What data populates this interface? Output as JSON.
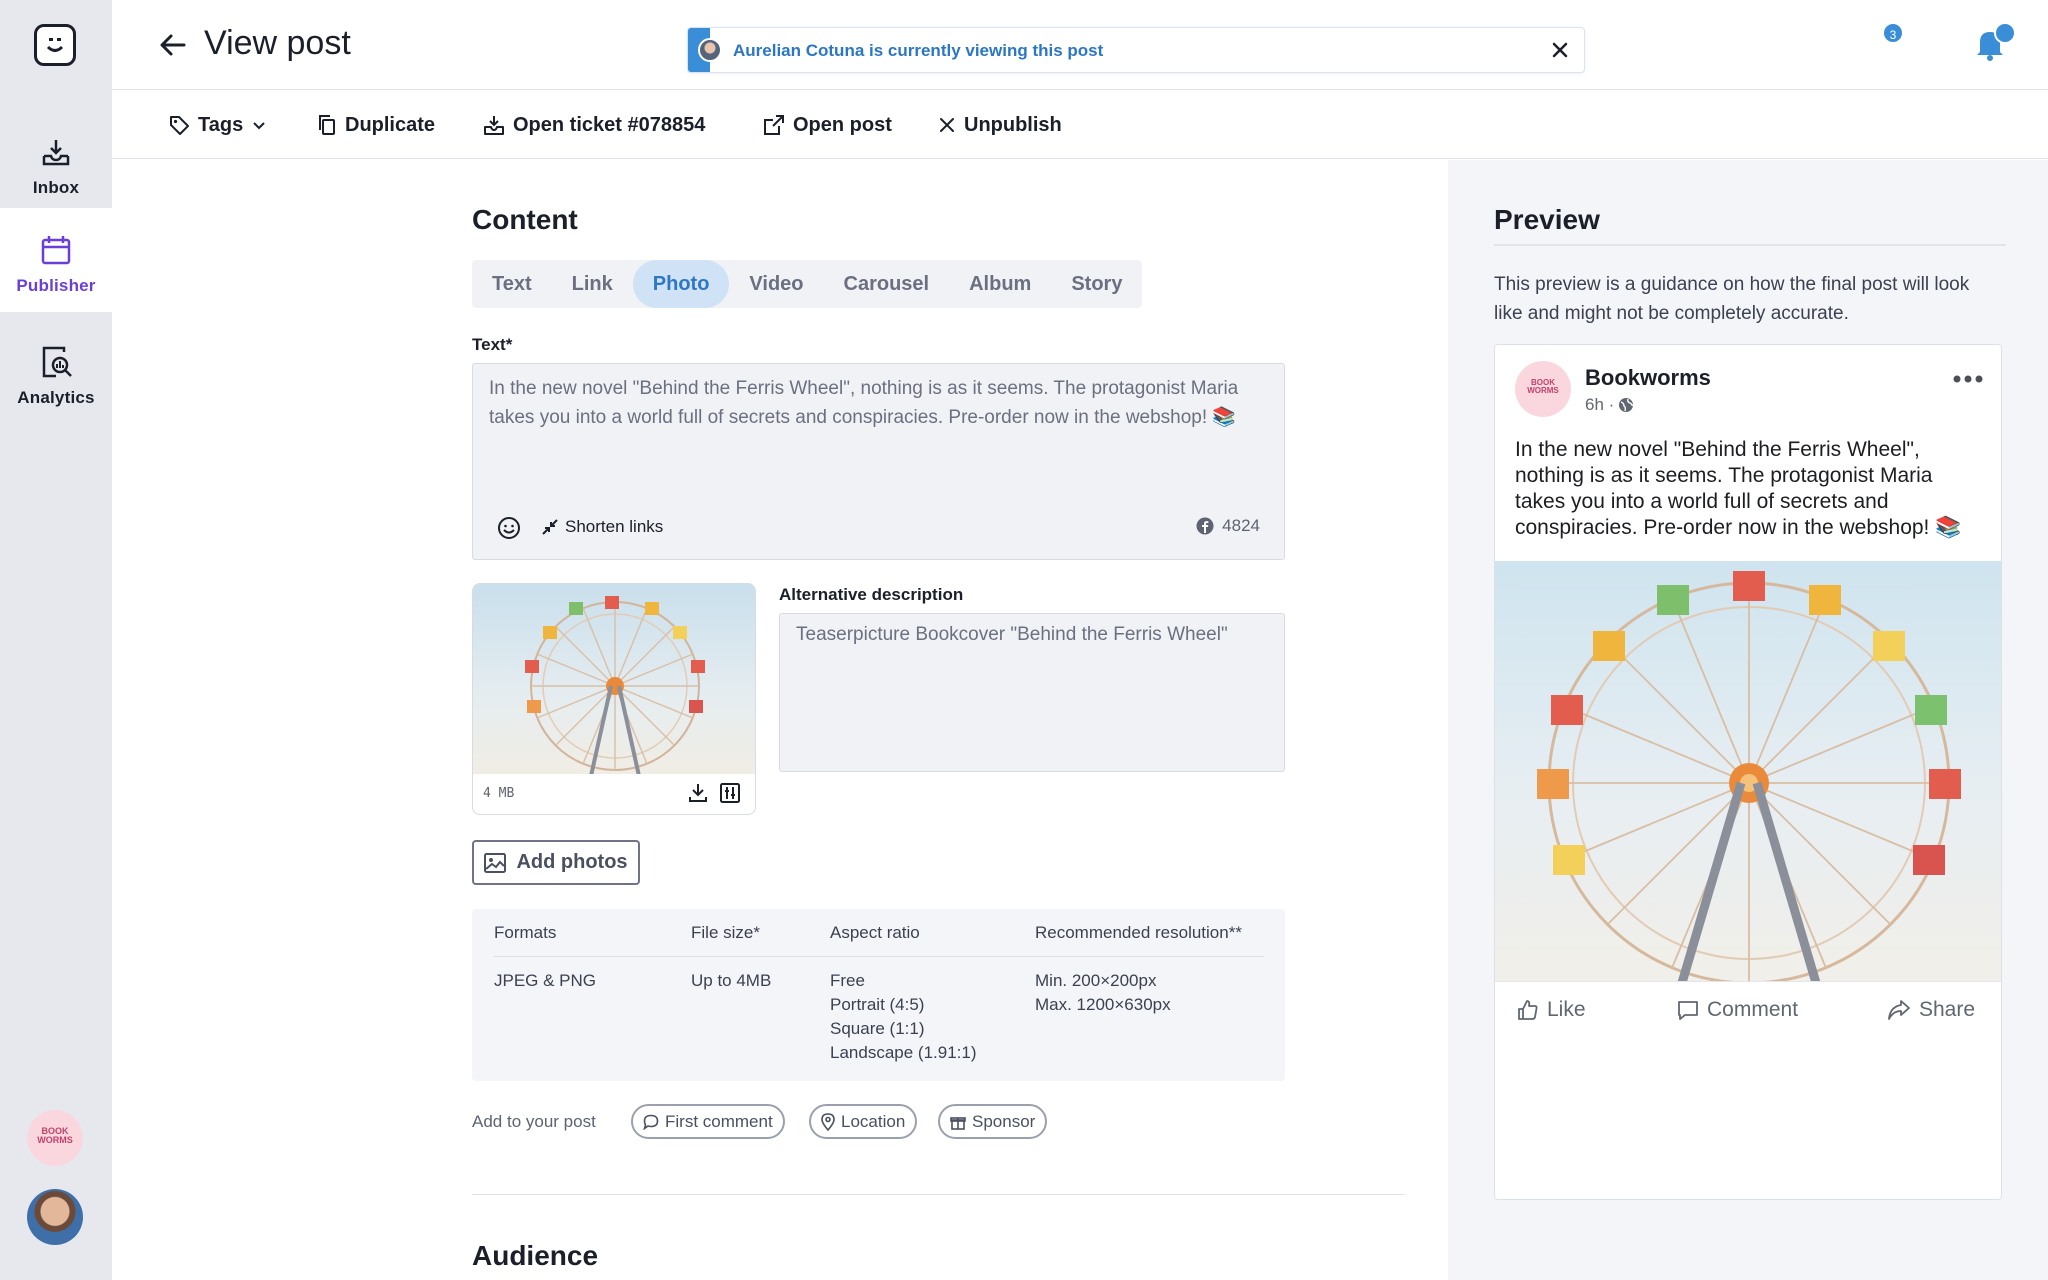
{
  "nav": {
    "items": [
      {
        "label": "Inbox",
        "icon": "inbox-icon"
      },
      {
        "label": "Publisher",
        "icon": "calendar-icon",
        "active": true
      },
      {
        "label": "Analytics",
        "icon": "analytics-icon"
      }
    ],
    "brand_avatar_text": "BOOK WORMS",
    "accent_color": "#6a3fd8"
  },
  "header": {
    "title": "View post",
    "viewer_banner": "Aurelian Cotuna is currently viewing this post",
    "notification_count": "3"
  },
  "toolbar": {
    "tags": "Tags",
    "duplicate": "Duplicate",
    "open_ticket": "Open ticket #078854",
    "open_post": "Open post",
    "unpublish": "Unpublish"
  },
  "content": {
    "title": "Content",
    "tabs": [
      "Text",
      "Link",
      "Photo",
      "Video",
      "Carousel",
      "Album",
      "Story"
    ],
    "active_tab": "Photo",
    "text_label": "Text*",
    "text_value": "In the new novel \"Behind the Ferris Wheel\", nothing is as it seems. The protagonist Maria takes you into a world full of secrets and conspiracies. Pre-order now in the webshop! 📚",
    "shorten_links": "Shorten links",
    "char_count": "4824",
    "photo_size": "4 MB",
    "alt_label": "Alternative description",
    "alt_value": "Teaserpicture Bookcover \"Behind the Ferris Wheel\"",
    "add_photos": "Add photos",
    "spec": {
      "headers": [
        "Formats",
        "File size*",
        "Aspect ratio",
        "Recommended resolution**"
      ],
      "formats": "JPEG & PNG",
      "file_size": "Up to 4MB",
      "aspect_ratios": [
        "Free",
        "Portrait (4:5)",
        "Square (1:1)",
        "Landscape (1.91:1)"
      ],
      "resolutions": [
        "Min. 200×200px",
        "Max. 1200×630px"
      ]
    },
    "add_to_post_label": "Add to your post",
    "chips": [
      "First comment",
      "Location",
      "Sponsor"
    ]
  },
  "audience": {
    "title": "Audience"
  },
  "preview": {
    "title": "Preview",
    "note": "This preview is a guidance on how the final post will look like and might not be completely accurate.",
    "page_name": "Bookworms",
    "meta": "6h ·",
    "text": "In the new novel \"Behind the Ferris Wheel\", nothing is as it seems. The protagonist Maria takes you into a world full of secrets and conspiracies. Pre-order now in the webshop! 📚",
    "actions": [
      "Like",
      "Comment",
      "Share"
    ]
  }
}
